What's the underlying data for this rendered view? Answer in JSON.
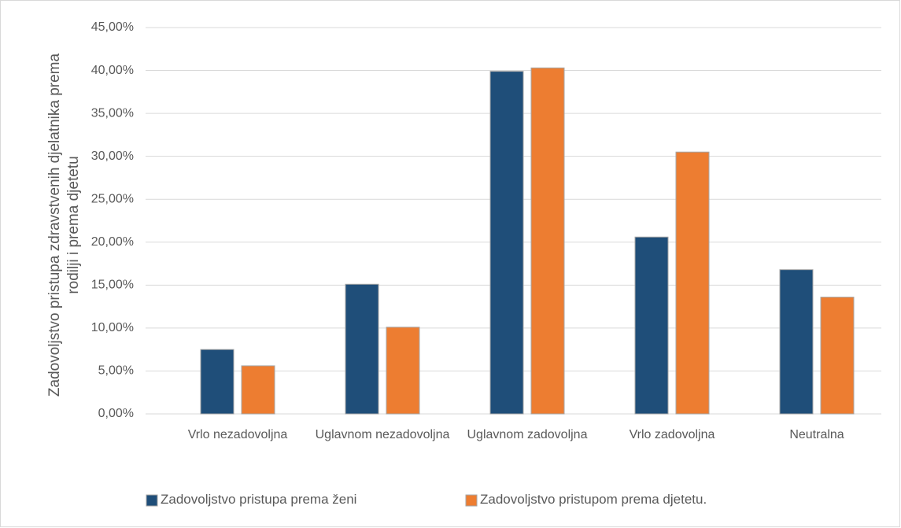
{
  "chart_data": {
    "type": "bar",
    "y_label": "Zadovoljstvo pristupa zdravstvenih djelatnika prema rodilji i prema djetetu",
    "categories": [
      "Vrlo nezadovoljna",
      "Uglavnom nezadovoljna",
      "Uglavnom zadovoljna",
      "Vrlo zadovoljna",
      "Neutralna"
    ],
    "series": [
      {
        "name": "Zadovoljstvo pristupa prema ženi",
        "color": "#1f4e79",
        "values": [
          7.5,
          15.1,
          39.9,
          20.6,
          16.8
        ]
      },
      {
        "name": "Zadovoljstvo pristupom prema djetetu.",
        "color": "#ed7d31",
        "values": [
          5.6,
          10.1,
          40.3,
          30.5,
          13.6
        ]
      }
    ],
    "ylim": [
      0,
      45
    ],
    "yticks": [
      {
        "value": 0,
        "label": "0,00%"
      },
      {
        "value": 5,
        "label": "5,00%"
      },
      {
        "value": 10,
        "label": "10,00%"
      },
      {
        "value": 15,
        "label": "15,00%"
      },
      {
        "value": 20,
        "label": "20,00%"
      },
      {
        "value": 25,
        "label": "25,00%"
      },
      {
        "value": 30,
        "label": "30,00%"
      },
      {
        "value": 35,
        "label": "35,00%"
      },
      {
        "value": 40,
        "label": "40,00%"
      },
      {
        "value": 45,
        "label": "45,00%"
      }
    ],
    "grid": true,
    "legend": "bottom"
  }
}
